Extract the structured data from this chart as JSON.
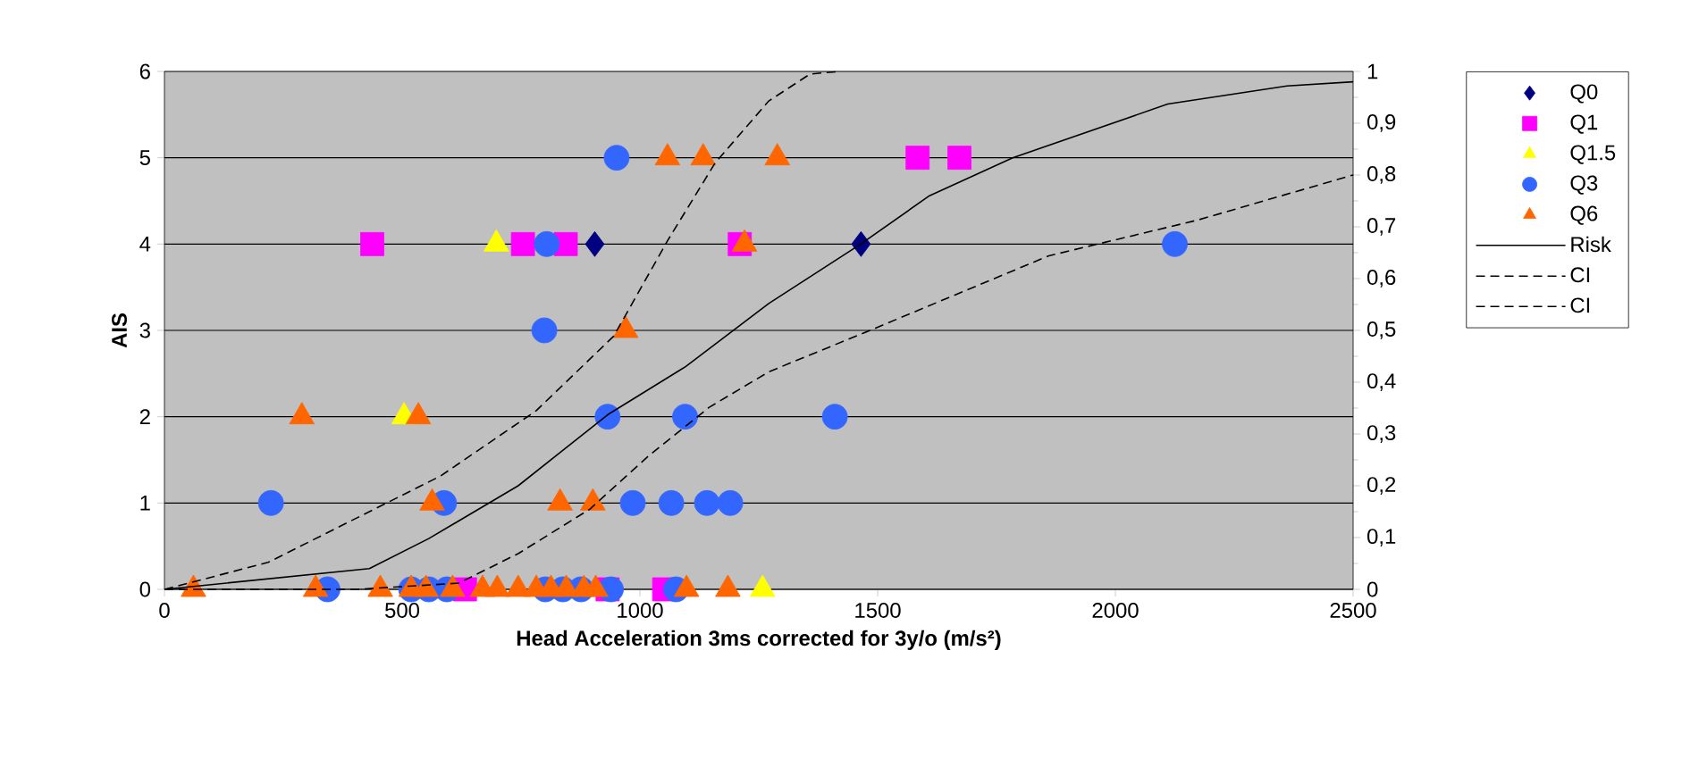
{
  "chart_data": {
    "type": "scatter",
    "xlabel": "Head Acceleration 3ms corrected for 3y/o (m/s²)",
    "ylabel": "AIS",
    "xlim": [
      0,
      2500
    ],
    "xticks": [
      0,
      500,
      1000,
      1500,
      2000,
      2500
    ],
    "ylim": [
      0,
      6
    ],
    "yticks": [
      0,
      1,
      2,
      3,
      4,
      5,
      6
    ],
    "y2lim": [
      0,
      1
    ],
    "y2ticks": [
      0,
      {
        "value": 0.1,
        "label": "0,1"
      },
      {
        "value": 0.2,
        "label": "0,2"
      },
      {
        "value": 0.3,
        "label": "0,3"
      },
      {
        "value": 0.4,
        "label": "0,4"
      },
      {
        "value": 0.5,
        "label": "0,5"
      },
      {
        "value": 0.6,
        "label": "0,6"
      },
      {
        "value": 0.7,
        "label": "0,7"
      },
      {
        "value": 0.8,
        "label": "0,8"
      },
      {
        "value": 0.9,
        "label": "0,9"
      },
      1
    ],
    "grid": "y",
    "legend": "right",
    "series": [
      {
        "name": "Q0",
        "color": "#000080",
        "marker": "diamond",
        "x": [
          905,
          1465
        ],
        "values": [
          4,
          4
        ]
      },
      {
        "name": "Q1",
        "color": "#ff00ff",
        "marker": "square",
        "x": [
          437,
          754,
          844,
          1210,
          1584,
          1672,
          632,
          932,
          1051
        ],
        "values": [
          4,
          4,
          4,
          4,
          5,
          5,
          0,
          0,
          0
        ]
      },
      {
        "name": "Q1.5",
        "color": "#ffff00",
        "marker": "triangle",
        "x": [
          698,
          504,
          1258
        ],
        "values": [
          4,
          2,
          0
        ]
      },
      {
        "name": "Q3",
        "color": "#3366ff",
        "marker": "circle",
        "x": [
          951,
          804,
          2125,
          799,
          932,
          1095,
          1410,
          224,
          588,
          985,
          1066,
          1141,
          1190,
          343,
          519,
          556,
          594,
          801,
          838,
          876,
          939,
          1076
        ],
        "values": [
          5,
          4,
          4,
          3,
          2,
          2,
          2,
          1,
          1,
          1,
          1,
          1,
          1,
          0,
          0,
          0,
          0,
          0,
          0,
          0,
          0,
          0
        ]
      },
      {
        "name": "Q6",
        "color": "#ff6600",
        "marker": "triangle",
        "x": [
          1058,
          1133,
          1289,
          1220,
          970,
          289,
          534,
          563,
          832,
          901,
          61,
          318,
          454,
          519,
          550,
          606,
          669,
          700,
          744,
          782,
          813,
          845,
          882,
          907,
          1098,
          1185
        ],
        "values": [
          5,
          5,
          5,
          4,
          3,
          2,
          2,
          1,
          1,
          1,
          0,
          0,
          0,
          0,
          0,
          0,
          0,
          0,
          0,
          0,
          0,
          0,
          0,
          0,
          0,
          0
        ]
      },
      {
        "name": "Risk",
        "type": "line",
        "axis": "y2",
        "color": "#000000",
        "marker": "none",
        "line_style": "solid",
        "x": [
          0,
          431,
          556,
          744,
          932,
          1096,
          1271,
          1465,
          1609,
          1784,
          2110,
          2361,
          2500
        ],
        "values": [
          0,
          0.04,
          0.098,
          0.2,
          0.337,
          0.43,
          0.552,
          0.667,
          0.76,
          0.833,
          0.937,
          0.972,
          0.98
        ]
      },
      {
        "name": "CI",
        "type": "line",
        "axis": "y2",
        "color": "#000000",
        "marker": "none",
        "line_style": "dashed",
        "x": [
          0,
          218,
          581,
          782,
          945,
          1058,
          1158,
          1271,
          1358,
          1421
        ],
        "values": [
          0,
          0.052,
          0.219,
          0.345,
          0.489,
          0.673,
          0.823,
          0.943,
          0.995,
          1
        ]
      },
      {
        "name": "CI",
        "type": "line",
        "axis": "y2",
        "color": "#000000",
        "marker": "none",
        "line_style": "dashed",
        "x": [
          0,
          406,
          619,
          744,
          895,
          1020,
          1145,
          1271,
          1484,
          1860,
          2173,
          2500
        ],
        "values": [
          0,
          0,
          0.012,
          0.069,
          0.155,
          0.259,
          0.351,
          0.42,
          0.5,
          0.644,
          0.713,
          0.8
        ]
      }
    ]
  }
}
